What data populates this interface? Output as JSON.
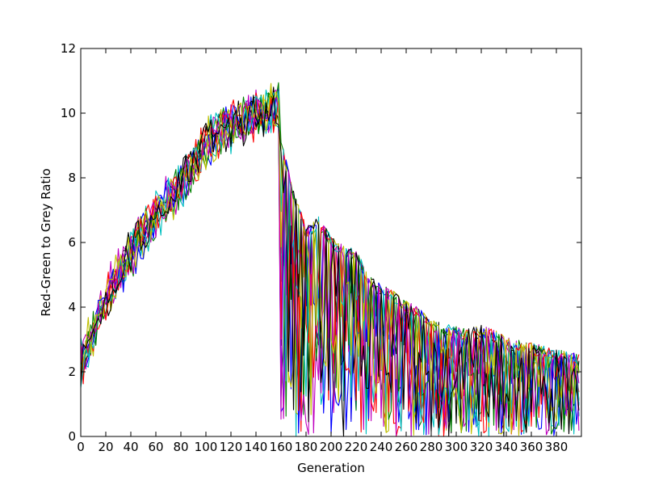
{
  "chart_data": {
    "type": "line",
    "title": "",
    "xlabel": "Generation",
    "ylabel": "Red-Green to Grey Ratio",
    "xlim": [
      0,
      400
    ],
    "ylim": [
      0,
      12
    ],
    "x_ticks": [
      0,
      20,
      40,
      60,
      80,
      100,
      120,
      140,
      160,
      180,
      200,
      220,
      240,
      260,
      280,
      300,
      320,
      340,
      360,
      380
    ],
    "x_tick_labels": [
      "0",
      "20",
      "40",
      "60",
      "80",
      "100",
      "120",
      "140",
      "160",
      "180",
      "200",
      "220",
      "240",
      "260",
      "280",
      "300",
      "320",
      "340",
      "360",
      "380"
    ],
    "y_ticks": [
      0,
      2,
      4,
      6,
      8,
      10,
      12
    ],
    "y_tick_labels": [
      "0",
      "2",
      "4",
      "6",
      "8",
      "10",
      "12"
    ],
    "grid": false,
    "legend": "none",
    "series_colors": [
      "#0000ff",
      "#008000",
      "#ff0000",
      "#00bfbf",
      "#bf00bf",
      "#bfbf00",
      "#000000"
    ],
    "series_count": 14,
    "envelope": {
      "x": [
        0,
        10,
        20,
        30,
        40,
        50,
        60,
        70,
        80,
        90,
        100,
        110,
        120,
        130,
        140,
        150,
        158,
        160,
        170,
        180,
        190,
        200,
        210,
        220,
        230,
        240,
        250,
        260,
        270,
        280,
        290,
        300,
        310,
        320,
        330,
        340,
        350,
        360,
        370,
        380,
        390,
        400
      ],
      "upper": [
        2.8,
        3.8,
        4.9,
        5.6,
        6.2,
        6.9,
        7.4,
        7.9,
        8.4,
        9.0,
        9.6,
        10.0,
        10.2,
        10.4,
        10.5,
        10.7,
        10.8,
        9.2,
        7.6,
        6.5,
        6.8,
        6.2,
        5.9,
        5.8,
        5.0,
        4.7,
        4.5,
        4.2,
        4.0,
        3.6,
        3.5,
        3.4,
        3.35,
        3.45,
        3.3,
        3.1,
        3.0,
        2.9,
        2.8,
        2.7,
        2.6,
        2.55
      ]
    }
  }
}
